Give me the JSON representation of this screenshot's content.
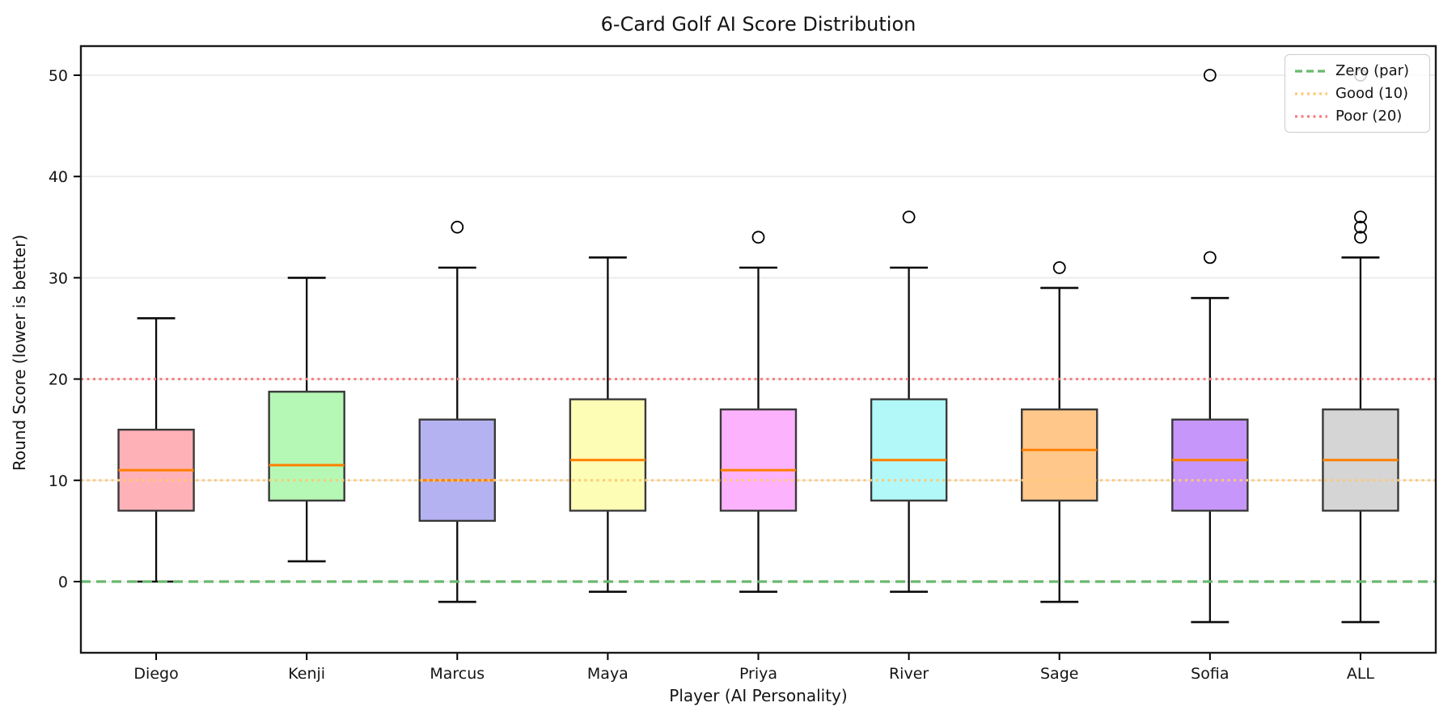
{
  "chart_data": {
    "type": "boxplot",
    "title": "6-Card Golf AI Score Distribution",
    "xlabel": "Player (AI Personality)",
    "ylabel": "Round Score (lower is better)",
    "categories": [
      "Diego",
      "Kenji",
      "Marcus",
      "Maya",
      "Priya",
      "River",
      "Sage",
      "Sofia",
      "ALL"
    ],
    "yticks": [
      0,
      10,
      20,
      30,
      40,
      50
    ],
    "ylim": [
      -7.1,
      52.9
    ],
    "grid": "horizontal-light",
    "legend_position": "upper-right",
    "median_color": "#ff8000",
    "box_edge_color": "#3a3a3a",
    "whisker_color": "#0a0a0a",
    "gridline_color": "#e9e9e9",
    "boxes": [
      {
        "player": "Diego",
        "fill": "#ffb1b8",
        "whisker_low": 0,
        "q1": 7,
        "median": 11,
        "q3": 15,
        "whisker_high": 26,
        "outliers": []
      },
      {
        "player": "Kenji",
        "fill": "#b5f8b5",
        "whisker_low": 2,
        "q1": 8,
        "median": 11.5,
        "q3": 18.75,
        "whisker_high": 30,
        "outliers": []
      },
      {
        "player": "Marcus",
        "fill": "#b5b2f2",
        "whisker_low": -2,
        "q1": 6,
        "median": 10,
        "q3": 16,
        "whisker_high": 31,
        "outliers": [
          35
        ]
      },
      {
        "player": "Maya",
        "fill": "#fdfdb5",
        "whisker_low": -1,
        "q1": 7,
        "median": 12,
        "q3": 18,
        "whisker_high": 32,
        "outliers": []
      },
      {
        "player": "Priya",
        "fill": "#fcb2fc",
        "whisker_low": -1,
        "q1": 7,
        "median": 11,
        "q3": 17,
        "whisker_high": 31,
        "outliers": [
          34
        ]
      },
      {
        "player": "River",
        "fill": "#b2f8f8",
        "whisker_low": -1,
        "q1": 8,
        "median": 12,
        "q3": 18,
        "whisker_high": 31,
        "outliers": [
          36
        ]
      },
      {
        "player": "Sage",
        "fill": "#ffc88a",
        "whisker_low": -2,
        "q1": 8,
        "median": 13,
        "q3": 17,
        "whisker_high": 29,
        "outliers": [
          31
        ]
      },
      {
        "player": "Sofia",
        "fill": "#c796fa",
        "whisker_low": -4,
        "q1": 7,
        "median": 12,
        "q3": 16,
        "whisker_high": 28,
        "outliers": [
          32,
          50
        ]
      },
      {
        "player": "ALL",
        "fill": "#d5d5d5",
        "whisker_low": -4,
        "q1": 7,
        "median": 12,
        "q3": 17,
        "whisker_high": 32,
        "outliers": [
          34,
          35,
          36,
          50
        ]
      }
    ],
    "reference_lines": [
      {
        "label": "Zero (par)",
        "value": 0,
        "color": "#69b96e",
        "style": "dashed"
      },
      {
        "label": "Good (10)",
        "value": 10,
        "color": "#ffc873",
        "style": "dotted"
      },
      {
        "label": "Poor (20)",
        "value": 20,
        "color": "#f57d7d",
        "style": "dotted"
      }
    ]
  }
}
